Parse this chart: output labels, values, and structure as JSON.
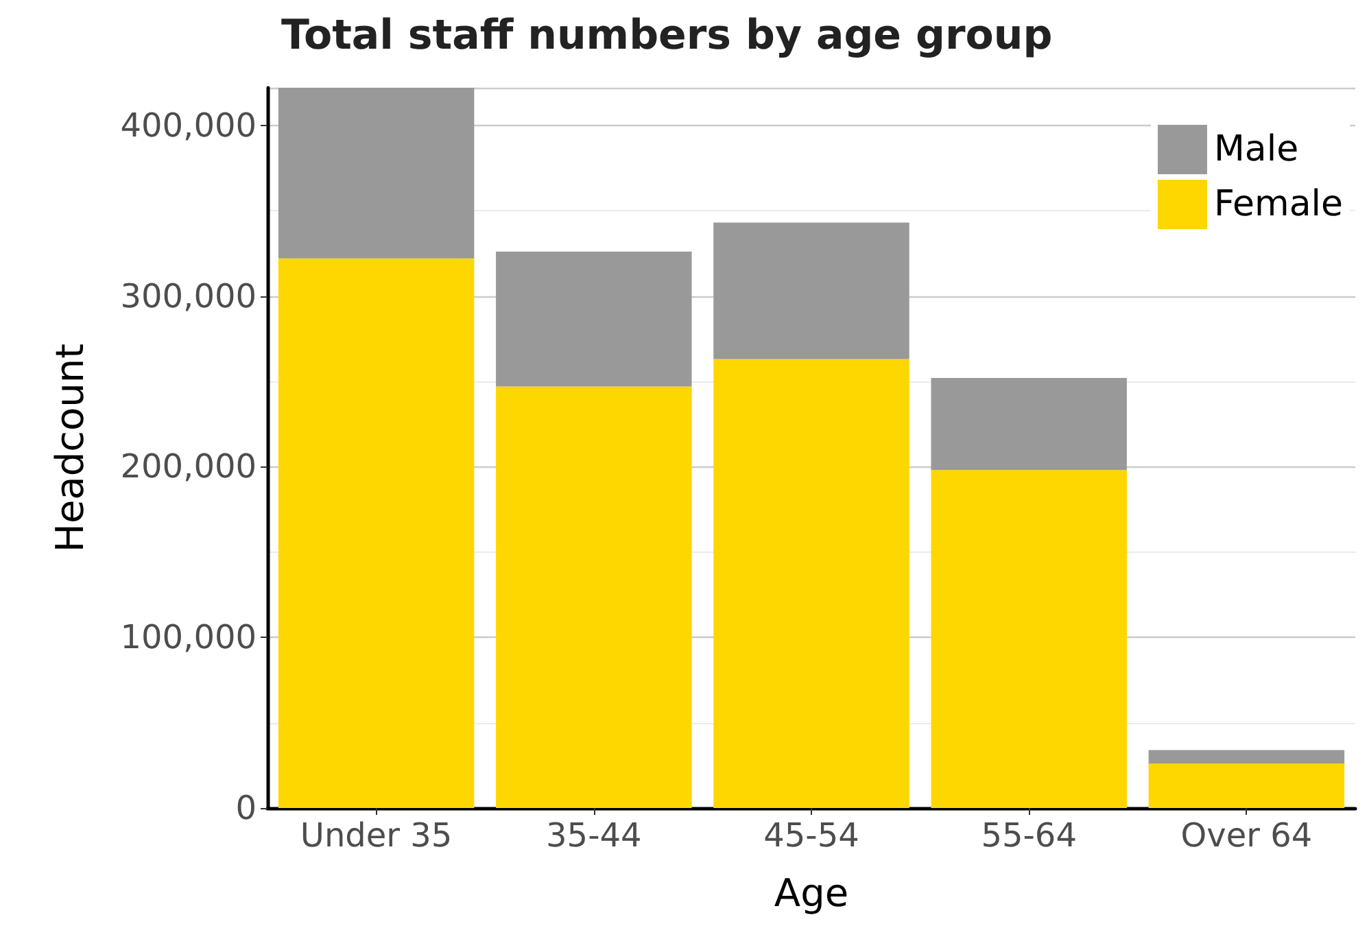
{
  "chart_data": {
    "type": "bar",
    "title": "Total staff numbers by age group",
    "xlabel": "Age",
    "ylabel": "Headcount",
    "categories": [
      "Under 35",
      "35-44",
      "45-54",
      "55-64",
      "Over 64"
    ],
    "stacked": true,
    "series": [
      {
        "name": "Female",
        "color": "#ffd700",
        "values": [
          322000,
          247000,
          263000,
          198000,
          26000
        ]
      },
      {
        "name": "Male",
        "color": "#999999",
        "values": [
          100000,
          79000,
          80000,
          54000,
          8000
        ]
      }
    ],
    "ylim": [
      0,
      422000
    ],
    "yticks": [
      0,
      {
        "value": 100000,
        "label": "100,000"
      },
      {
        "value": 200000,
        "label": "200,000"
      },
      {
        "value": 300000,
        "label": "300,000"
      },
      {
        "value": 400000,
        "label": "400,000"
      }
    ],
    "grid": "y",
    "legend": "top right"
  }
}
